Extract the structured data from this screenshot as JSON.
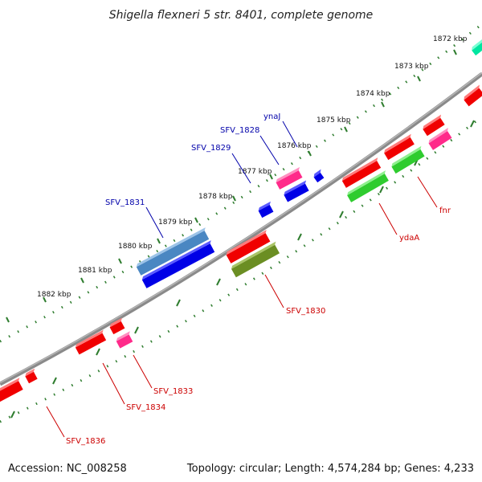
{
  "title": "Shigella flexneri 5 str. 8401, complete genome",
  "footer": {
    "accession": "Accession: NC_008258",
    "summary": "Topology: circular; Length: 4,574,284 bp; Genes: 4,233"
  },
  "colors": {
    "backbone": "#7b7b7b",
    "tick": "#2f7d2f",
    "label_forward": "#0000aa",
    "label_reverse": "#cc0000",
    "red": "#f00000",
    "blue": "#0000e6",
    "pink": "#ff2a8a",
    "green": "#2fcc2f",
    "olive": "#6b8e23",
    "steel": "#4a87c2",
    "teal": "#00e6a0"
  },
  "ticks": [
    "1872 kbp",
    "1873 kbp",
    "1874 kbp",
    "1875 kbp",
    "1876 kbp",
    "1877 kbp",
    "1878 kbp",
    "1879 kbp",
    "1880 kbp",
    "1881 kbp",
    "1882 kbp"
  ],
  "labels": {
    "ynaJ": "ynaJ",
    "sfv1828": "SFV_1828",
    "sfv1829": "SFV_1829",
    "sfv1831": "SFV_1831",
    "fnr": "fnr",
    "ydaA": "ydaA",
    "sfv1830": "SFV_1830",
    "sfv1833": "SFV_1833",
    "sfv1834": "SFV_1834",
    "sfv1836": "SFV_1836"
  }
}
